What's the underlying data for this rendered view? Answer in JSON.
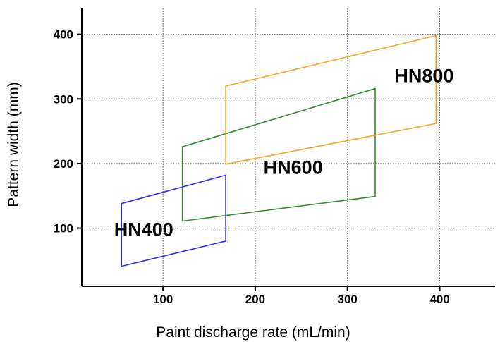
{
  "chart_data": {
    "type": "area",
    "xlabel": "Paint discharge rate (mL/min)",
    "ylabel": "Pattern width (mm)",
    "xlim": [
      12,
      460
    ],
    "ylim": [
      10,
      440
    ],
    "x_ticks": [
      100,
      200,
      300,
      400
    ],
    "y_ticks": [
      100,
      200,
      300,
      400
    ],
    "x_tick_labels": [
      "100",
      "200",
      "300",
      "400"
    ],
    "y_tick_labels": [
      "100",
      "200",
      "300",
      "400"
    ],
    "grid": "dotted",
    "series": [
      {
        "name": "HN400",
        "color": "#2c2cff",
        "points": [
          [
            55,
            138
          ],
          [
            168,
            182
          ],
          [
            168,
            80
          ],
          [
            55,
            41
          ]
        ]
      },
      {
        "name": "HN600",
        "color": "#2e8b2e",
        "points": [
          [
            121,
            226
          ],
          [
            330,
            316
          ],
          [
            330,
            149
          ],
          [
            121,
            111
          ]
        ]
      },
      {
        "name": "HN800",
        "color": "#f5a623",
        "points": [
          [
            168,
            320
          ],
          [
            396,
            398
          ],
          [
            396,
            262
          ],
          [
            168,
            199
          ]
        ]
      }
    ],
    "annotations": [
      {
        "text": "HN400",
        "x": 47,
        "y": 88
      },
      {
        "text": "HN600",
        "x": 209,
        "y": 184
      },
      {
        "text": "HN800",
        "x": 351,
        "y": 326
      }
    ]
  }
}
